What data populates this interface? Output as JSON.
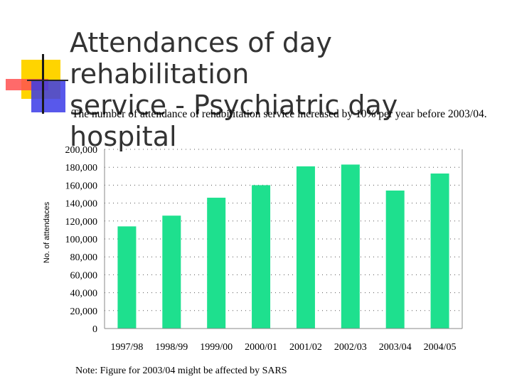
{
  "header": {
    "title": "Attendances of day rehabilitation\nservice  - Psychiatric day hospital",
    "subtitle": "The number of attendance of rehabilitation service increased by 10% per year before 2003/04."
  },
  "footer": {
    "note": "Note: Figure for 2003/04 might be affected by SARS"
  },
  "colors": {
    "bar": "#1ee08e",
    "grid": "#555555",
    "axis": "#888888"
  },
  "chart_data": {
    "type": "bar",
    "title": "",
    "xlabel": "",
    "ylabel": "No. of attendaces",
    "categories": [
      "1997/98",
      "1998/99",
      "1999/00",
      "2000/01",
      "2001/02",
      "2002/03",
      "2003/04",
      "2004/05"
    ],
    "values": [
      114000,
      126000,
      146000,
      160000,
      181000,
      183000,
      154000,
      173000
    ],
    "ylim": [
      0,
      200000
    ],
    "yticks": [
      "0",
      "20,000",
      "40,000",
      "60,000",
      "80,000",
      "100,000",
      "120,000",
      "140,000",
      "160,000",
      "180,000",
      "200,000"
    ],
    "grid": "horizontal dotted",
    "legend": "none"
  }
}
